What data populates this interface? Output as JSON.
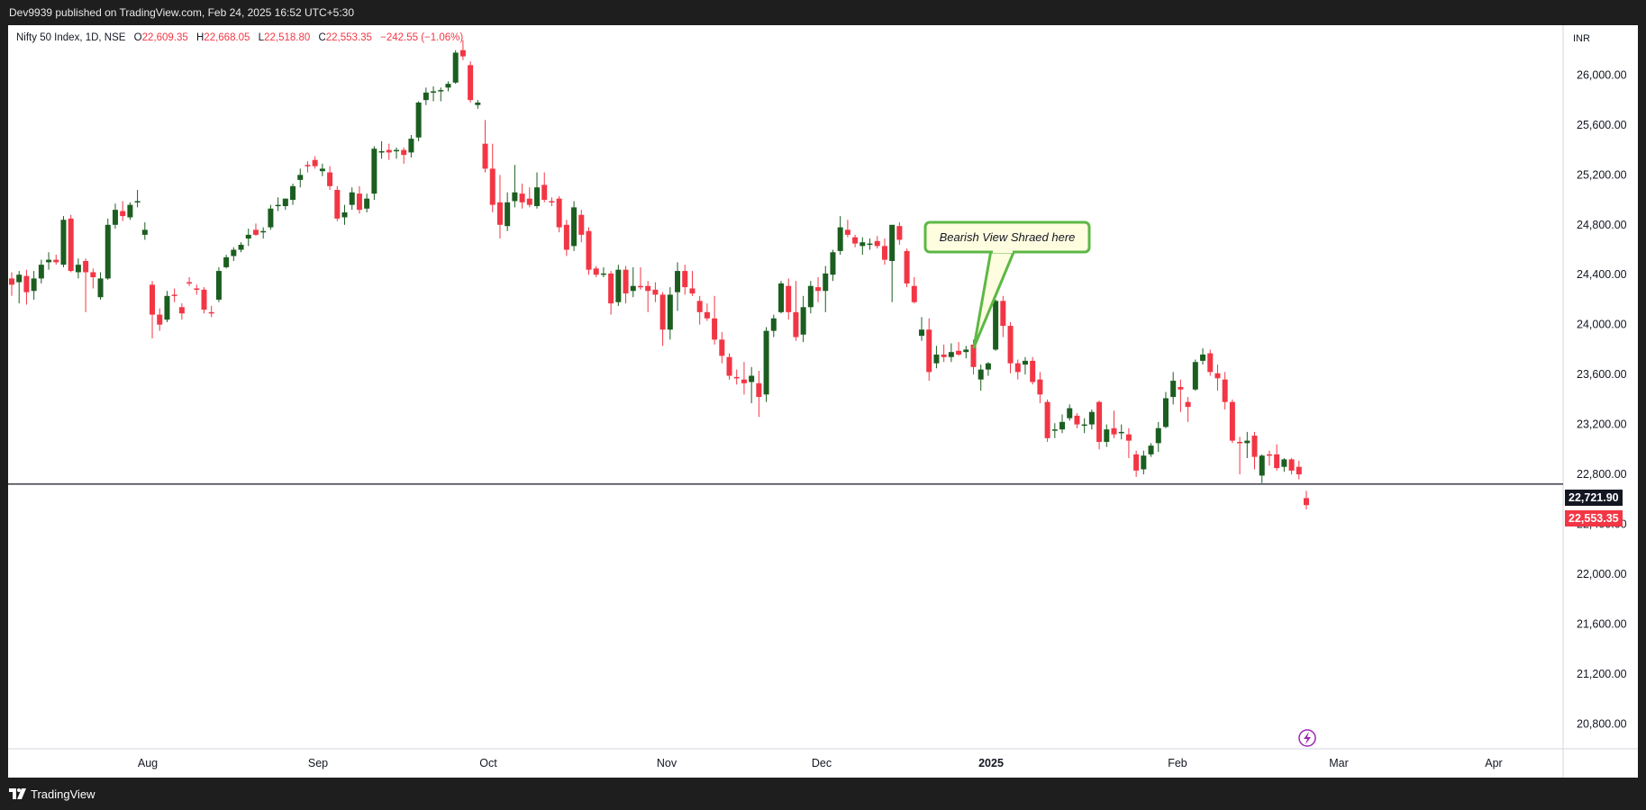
{
  "header": {
    "published": "Dev9939 published on TradingView.com, Feb 24, 2025 16:52 UTC+5:30"
  },
  "legend": {
    "symbol": "Nifty 50 Index, 1D, NSE",
    "o_label": "O",
    "o": "22,609.35",
    "h_label": "H",
    "h": "22,668.05",
    "l_label": "L",
    "l": "22,518.80",
    "c_label": "C",
    "c": "22,553.35",
    "change": "−242.55 (−1.06%)"
  },
  "currency": "INR",
  "y_axis_ticks": [
    "26,000.00",
    "25,600.00",
    "25,200.00",
    "24,800.00",
    "24,400.00",
    "24,000.00",
    "23,600.00",
    "23,200.00",
    "22,800.00",
    "22,400.00",
    "22,000.00",
    "21,600.00",
    "21,200.00",
    "20,800.00"
  ],
  "x_axis_ticks": [
    "Aug",
    "Sep",
    "Oct",
    "Nov",
    "Dec",
    "2025",
    "Feb",
    "Mar",
    "Apr"
  ],
  "price_labels": {
    "level": "22,721.90",
    "last": "22,553.35"
  },
  "callout": {
    "text": "Bearish View Shraed here"
  },
  "footer": {
    "brand": "TradingView"
  },
  "colors": {
    "up": "#1b5e20",
    "down": "#f23645",
    "background": "#1e1e1e",
    "callout_border": "#5cb845",
    "callout_fill": "#fffde0"
  },
  "chart_data": {
    "type": "candlestick",
    "ylim": [
      20600,
      26400
    ],
    "horizontal_level": 22721.9,
    "candles": [
      {
        "o": 24370,
        "h": 24420,
        "l": 24230,
        "c": 24320
      },
      {
        "o": 24340,
        "h": 24430,
        "l": 24170,
        "c": 24400
      },
      {
        "o": 24390,
        "h": 24440,
        "l": 24160,
        "c": 24260
      },
      {
        "o": 24270,
        "h": 24430,
        "l": 24200,
        "c": 24370
      },
      {
        "o": 24370,
        "h": 24520,
        "l": 24330,
        "c": 24480
      },
      {
        "o": 24500,
        "h": 24580,
        "l": 24440,
        "c": 24520
      },
      {
        "o": 24520,
        "h": 24560,
        "l": 24480,
        "c": 24500
      },
      {
        "o": 24480,
        "h": 24870,
        "l": 24460,
        "c": 24840
      },
      {
        "o": 24850,
        "h": 24880,
        "l": 24420,
        "c": 24430
      },
      {
        "o": 24420,
        "h": 24530,
        "l": 24370,
        "c": 24480
      },
      {
        "o": 24510,
        "h": 24530,
        "l": 24100,
        "c": 24420
      },
      {
        "o": 24420,
        "h": 24450,
        "l": 24290,
        "c": 24380
      },
      {
        "o": 24220,
        "h": 24420,
        "l": 24200,
        "c": 24370
      },
      {
        "o": 24370,
        "h": 24850,
        "l": 24360,
        "c": 24800
      },
      {
        "o": 24800,
        "h": 24970,
        "l": 24770,
        "c": 24920
      },
      {
        "o": 24910,
        "h": 24990,
        "l": 24830,
        "c": 24870
      },
      {
        "o": 24860,
        "h": 24980,
        "l": 24840,
        "c": 24960
      },
      {
        "o": 24980,
        "h": 25080,
        "l": 24940,
        "c": 24990
      },
      {
        "o": 24720,
        "h": 24820,
        "l": 24680,
        "c": 24760
      },
      {
        "o": 24320,
        "h": 24350,
        "l": 23890,
        "c": 24080
      },
      {
        "o": 24080,
        "h": 24130,
        "l": 23950,
        "c": 24000
      },
      {
        "o": 24040,
        "h": 24270,
        "l": 24020,
        "c": 24230
      },
      {
        "o": 24240,
        "h": 24290,
        "l": 24180,
        "c": 24230
      },
      {
        "o": 24140,
        "h": 24170,
        "l": 24040,
        "c": 24090
      },
      {
        "o": 24340,
        "h": 24380,
        "l": 24310,
        "c": 24330
      },
      {
        "o": 24290,
        "h": 24320,
        "l": 24240,
        "c": 24280
      },
      {
        "o": 24280,
        "h": 24300,
        "l": 24090,
        "c": 24120
      },
      {
        "o": 24100,
        "h": 24150,
        "l": 24060,
        "c": 24090
      },
      {
        "o": 24200,
        "h": 24460,
        "l": 24180,
        "c": 24430
      },
      {
        "o": 24460,
        "h": 24560,
        "l": 24450,
        "c": 24540
      },
      {
        "o": 24550,
        "h": 24620,
        "l": 24510,
        "c": 24600
      },
      {
        "o": 24600,
        "h": 24660,
        "l": 24580,
        "c": 24640
      },
      {
        "o": 24690,
        "h": 24770,
        "l": 24630,
        "c": 24720
      },
      {
        "o": 24760,
        "h": 24810,
        "l": 24710,
        "c": 24720
      },
      {
        "o": 24740,
        "h": 24780,
        "l": 24690,
        "c": 24750
      },
      {
        "o": 24780,
        "h": 24960,
        "l": 24760,
        "c": 24930
      },
      {
        "o": 24950,
        "h": 25020,
        "l": 24910,
        "c": 24960
      },
      {
        "o": 24950,
        "h": 25010,
        "l": 24920,
        "c": 25010
      },
      {
        "o": 25000,
        "h": 25130,
        "l": 24960,
        "c": 25110
      },
      {
        "o": 25160,
        "h": 25250,
        "l": 25100,
        "c": 25200
      },
      {
        "o": 25280,
        "h": 25310,
        "l": 25220,
        "c": 25270
      },
      {
        "o": 25320,
        "h": 25350,
        "l": 25250,
        "c": 25270
      },
      {
        "o": 25230,
        "h": 25290,
        "l": 25190,
        "c": 25250
      },
      {
        "o": 25220,
        "h": 25270,
        "l": 25080,
        "c": 25110
      },
      {
        "o": 25080,
        "h": 25110,
        "l": 24830,
        "c": 24850
      },
      {
        "o": 24860,
        "h": 24960,
        "l": 24800,
        "c": 24900
      },
      {
        "o": 24960,
        "h": 25100,
        "l": 24920,
        "c": 25060
      },
      {
        "o": 25050,
        "h": 25110,
        "l": 24890,
        "c": 24920
      },
      {
        "o": 24930,
        "h": 25050,
        "l": 24900,
        "c": 25010
      },
      {
        "o": 25050,
        "h": 25430,
        "l": 25000,
        "c": 25410
      },
      {
        "o": 25390,
        "h": 25470,
        "l": 25330,
        "c": 25390
      },
      {
        "o": 25400,
        "h": 25450,
        "l": 25320,
        "c": 25380
      },
      {
        "o": 25390,
        "h": 25420,
        "l": 25330,
        "c": 25400
      },
      {
        "o": 25400,
        "h": 25420,
        "l": 25290,
        "c": 25360
      },
      {
        "o": 25380,
        "h": 25520,
        "l": 25340,
        "c": 25490
      },
      {
        "o": 25500,
        "h": 25790,
        "l": 25470,
        "c": 25780
      },
      {
        "o": 25800,
        "h": 25900,
        "l": 25760,
        "c": 25860
      },
      {
        "o": 25860,
        "h": 25910,
        "l": 25790,
        "c": 25870
      },
      {
        "o": 25880,
        "h": 25900,
        "l": 25790,
        "c": 25880
      },
      {
        "o": 25900,
        "h": 25950,
        "l": 25870,
        "c": 25930
      },
      {
        "o": 25940,
        "h": 26200,
        "l": 25930,
        "c": 26180
      },
      {
        "o": 26200,
        "h": 26280,
        "l": 26120,
        "c": 26150
      },
      {
        "o": 26080,
        "h": 26110,
        "l": 25780,
        "c": 25800
      },
      {
        "o": 25760,
        "h": 25800,
        "l": 25730,
        "c": 25780
      },
      {
        "o": 25450,
        "h": 25640,
        "l": 25220,
        "c": 25250
      },
      {
        "o": 25250,
        "h": 25450,
        "l": 24900,
        "c": 24960
      },
      {
        "o": 24980,
        "h": 25200,
        "l": 24690,
        "c": 24800
      },
      {
        "o": 24790,
        "h": 25060,
        "l": 24750,
        "c": 24980
      },
      {
        "o": 24990,
        "h": 25280,
        "l": 24940,
        "c": 25060
      },
      {
        "o": 25050,
        "h": 25130,
        "l": 24930,
        "c": 24980
      },
      {
        "o": 25010,
        "h": 25100,
        "l": 24940,
        "c": 24960
      },
      {
        "o": 24950,
        "h": 25220,
        "l": 24930,
        "c": 25100
      },
      {
        "o": 25120,
        "h": 25220,
        "l": 24980,
        "c": 25000
      },
      {
        "o": 24990,
        "h": 25020,
        "l": 24950,
        "c": 24980
      },
      {
        "o": 25010,
        "h": 25030,
        "l": 24740,
        "c": 24780
      },
      {
        "o": 24800,
        "h": 24840,
        "l": 24550,
        "c": 24600
      },
      {
        "o": 24630,
        "h": 24990,
        "l": 24590,
        "c": 24940
      },
      {
        "o": 24880,
        "h": 24920,
        "l": 24660,
        "c": 24720
      },
      {
        "o": 24750,
        "h": 24780,
        "l": 24400,
        "c": 24440
      },
      {
        "o": 24450,
        "h": 24470,
        "l": 24380,
        "c": 24400
      },
      {
        "o": 24400,
        "h": 24460,
        "l": 24380,
        "c": 24410
      },
      {
        "o": 24410,
        "h": 24430,
        "l": 24080,
        "c": 24170
      },
      {
        "o": 24180,
        "h": 24480,
        "l": 24150,
        "c": 24440
      },
      {
        "o": 24440,
        "h": 24470,
        "l": 24170,
        "c": 24250
      },
      {
        "o": 24270,
        "h": 24460,
        "l": 24220,
        "c": 24310
      },
      {
        "o": 24310,
        "h": 24460,
        "l": 24280,
        "c": 24300
      },
      {
        "o": 24310,
        "h": 24350,
        "l": 24100,
        "c": 24270
      },
      {
        "o": 24280,
        "h": 24340,
        "l": 24180,
        "c": 24240
      },
      {
        "o": 24240,
        "h": 24260,
        "l": 23830,
        "c": 23960
      },
      {
        "o": 23960,
        "h": 24300,
        "l": 23880,
        "c": 24240
      },
      {
        "o": 24260,
        "h": 24500,
        "l": 24110,
        "c": 24430
      },
      {
        "o": 24430,
        "h": 24480,
        "l": 24240,
        "c": 24300
      },
      {
        "o": 24290,
        "h": 24430,
        "l": 24230,
        "c": 24250
      },
      {
        "o": 24190,
        "h": 24230,
        "l": 24000,
        "c": 24100
      },
      {
        "o": 24100,
        "h": 24170,
        "l": 24030,
        "c": 24050
      },
      {
        "o": 24050,
        "h": 24230,
        "l": 23840,
        "c": 23880
      },
      {
        "o": 23880,
        "h": 23940,
        "l": 23690,
        "c": 23750
      },
      {
        "o": 23740,
        "h": 23770,
        "l": 23560,
        "c": 23590
      },
      {
        "o": 23580,
        "h": 23640,
        "l": 23520,
        "c": 23570
      },
      {
        "o": 23560,
        "h": 23700,
        "l": 23440,
        "c": 23530
      },
      {
        "o": 23540,
        "h": 23660,
        "l": 23370,
        "c": 23590
      },
      {
        "o": 23530,
        "h": 23630,
        "l": 23260,
        "c": 23420
      },
      {
        "o": 23440,
        "h": 23980,
        "l": 23380,
        "c": 23950
      },
      {
        "o": 23950,
        "h": 24080,
        "l": 23900,
        "c": 24050
      },
      {
        "o": 24100,
        "h": 24350,
        "l": 24090,
        "c": 24330
      },
      {
        "o": 24310,
        "h": 24370,
        "l": 24040,
        "c": 24100
      },
      {
        "o": 24100,
        "h": 24350,
        "l": 23870,
        "c": 23900
      },
      {
        "o": 23920,
        "h": 24230,
        "l": 23860,
        "c": 24140
      },
      {
        "o": 24140,
        "h": 24350,
        "l": 24090,
        "c": 24310
      },
      {
        "o": 24300,
        "h": 24380,
        "l": 24180,
        "c": 24270
      },
      {
        "o": 24270,
        "h": 24470,
        "l": 24100,
        "c": 24410
      },
      {
        "o": 24400,
        "h": 24600,
        "l": 24350,
        "c": 24580
      },
      {
        "o": 24590,
        "h": 24870,
        "l": 24560,
        "c": 24780
      },
      {
        "o": 24760,
        "h": 24840,
        "l": 24700,
        "c": 24720
      },
      {
        "o": 24700,
        "h": 24720,
        "l": 24620,
        "c": 24650
      },
      {
        "o": 24630,
        "h": 24700,
        "l": 24560,
        "c": 24660
      },
      {
        "o": 24640,
        "h": 24690,
        "l": 24600,
        "c": 24650
      },
      {
        "o": 24670,
        "h": 24710,
        "l": 24610,
        "c": 24630
      },
      {
        "o": 24630,
        "h": 24690,
        "l": 24480,
        "c": 24520
      },
      {
        "o": 24510,
        "h": 24790,
        "l": 24180,
        "c": 24800
      },
      {
        "o": 24790,
        "h": 24820,
        "l": 24640,
        "c": 24680
      },
      {
        "o": 24590,
        "h": 24610,
        "l": 24300,
        "c": 24330
      },
      {
        "o": 24310,
        "h": 24380,
        "l": 24170,
        "c": 24180
      },
      {
        "o": 23910,
        "h": 24060,
        "l": 23870,
        "c": 23960
      },
      {
        "o": 23960,
        "h": 24050,
        "l": 23550,
        "c": 23620
      },
      {
        "o": 23690,
        "h": 23830,
        "l": 23650,
        "c": 23760
      },
      {
        "o": 23760,
        "h": 23840,
        "l": 23700,
        "c": 23740
      },
      {
        "o": 23740,
        "h": 23850,
        "l": 23700,
        "c": 23780
      },
      {
        "o": 23790,
        "h": 23860,
        "l": 23750,
        "c": 23760
      },
      {
        "o": 23780,
        "h": 23830,
        "l": 23730,
        "c": 23800
      },
      {
        "o": 23840,
        "h": 23880,
        "l": 23600,
        "c": 23660
      },
      {
        "o": 23560,
        "h": 23680,
        "l": 23470,
        "c": 23640
      },
      {
        "o": 23640,
        "h": 23700,
        "l": 23590,
        "c": 23690
      },
      {
        "o": 23800,
        "h": 24200,
        "l": 23790,
        "c": 24190
      },
      {
        "o": 24190,
        "h": 24230,
        "l": 23900,
        "c": 23990
      },
      {
        "o": 23990,
        "h": 24020,
        "l": 23610,
        "c": 23690
      },
      {
        "o": 23690,
        "h": 23720,
        "l": 23560,
        "c": 23620
      },
      {
        "o": 23680,
        "h": 23740,
        "l": 23600,
        "c": 23710
      },
      {
        "o": 23710,
        "h": 23740,
        "l": 23520,
        "c": 23540
      },
      {
        "o": 23560,
        "h": 23620,
        "l": 23370,
        "c": 23440
      },
      {
        "o": 23380,
        "h": 23400,
        "l": 23060,
        "c": 23090
      },
      {
        "o": 23150,
        "h": 23210,
        "l": 23090,
        "c": 23160
      },
      {
        "o": 23160,
        "h": 23280,
        "l": 23130,
        "c": 23220
      },
      {
        "o": 23250,
        "h": 23360,
        "l": 23230,
        "c": 23330
      },
      {
        "o": 23270,
        "h": 23290,
        "l": 23170,
        "c": 23200
      },
      {
        "o": 23190,
        "h": 23250,
        "l": 23130,
        "c": 23200
      },
      {
        "o": 23200,
        "h": 23320,
        "l": 23160,
        "c": 23300
      },
      {
        "o": 23380,
        "h": 23390,
        "l": 23000,
        "c": 23060
      },
      {
        "o": 23060,
        "h": 23200,
        "l": 23020,
        "c": 23160
      },
      {
        "o": 23170,
        "h": 23310,
        "l": 23090,
        "c": 23120
      },
      {
        "o": 23130,
        "h": 23200,
        "l": 23080,
        "c": 23140
      },
      {
        "o": 23120,
        "h": 23170,
        "l": 22930,
        "c": 23070
      },
      {
        "o": 22960,
        "h": 22990,
        "l": 22780,
        "c": 22830
      },
      {
        "o": 22840,
        "h": 22990,
        "l": 22800,
        "c": 22950
      },
      {
        "o": 22960,
        "h": 23050,
        "l": 22940,
        "c": 23030
      },
      {
        "o": 23050,
        "h": 23220,
        "l": 22980,
        "c": 23170
      },
      {
        "o": 23180,
        "h": 23460,
        "l": 23170,
        "c": 23410
      },
      {
        "o": 23420,
        "h": 23620,
        "l": 23360,
        "c": 23550
      },
      {
        "o": 23500,
        "h": 23560,
        "l": 23300,
        "c": 23480
      },
      {
        "o": 23380,
        "h": 23420,
        "l": 23220,
        "c": 23340
      },
      {
        "o": 23480,
        "h": 23720,
        "l": 23470,
        "c": 23700
      },
      {
        "o": 23710,
        "h": 23810,
        "l": 23680,
        "c": 23760
      },
      {
        "o": 23770,
        "h": 23800,
        "l": 23590,
        "c": 23620
      },
      {
        "o": 23610,
        "h": 23680,
        "l": 23470,
        "c": 23570
      },
      {
        "o": 23560,
        "h": 23620,
        "l": 23320,
        "c": 23380
      },
      {
        "o": 23380,
        "h": 23400,
        "l": 23050,
        "c": 23070
      },
      {
        "o": 23060,
        "h": 23100,
        "l": 22800,
        "c": 23050
      },
      {
        "o": 23050,
        "h": 23140,
        "l": 22930,
        "c": 23070
      },
      {
        "o": 23110,
        "h": 23140,
        "l": 22840,
        "c": 22940
      },
      {
        "o": 22790,
        "h": 22960,
        "l": 22730,
        "c": 22950
      },
      {
        "o": 22960,
        "h": 22990,
        "l": 22870,
        "c": 22950
      },
      {
        "o": 22960,
        "h": 23040,
        "l": 22830,
        "c": 22850
      },
      {
        "o": 22860,
        "h": 22930,
        "l": 22820,
        "c": 22920
      },
      {
        "o": 22920,
        "h": 22930,
        "l": 22800,
        "c": 22830
      },
      {
        "o": 22860,
        "h": 22910,
        "l": 22760,
        "c": 22800
      },
      {
        "o": 22609.35,
        "h": 22668.05,
        "l": 22518.8,
        "c": 22553.35
      }
    ]
  }
}
